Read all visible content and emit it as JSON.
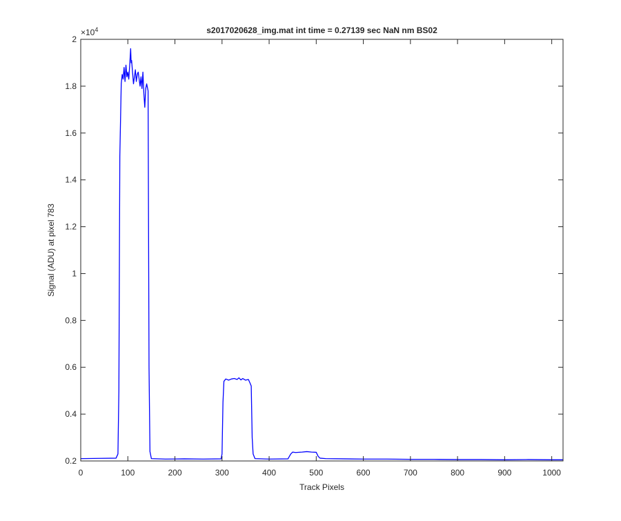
{
  "chart_data": {
    "type": "line",
    "title": "s2017020628_img.mat int time = 0.27139 sec  NaN nm BS02",
    "xlabel": "Track Pixels",
    "ylabel": "Signal (ADU) at pixel 783",
    "xlim": [
      0,
      1024
    ],
    "ylim": [
      2000,
      20000
    ],
    "y_exponent_label": "×10",
    "y_exponent_power": "4",
    "xticks": [
      0,
      100,
      200,
      300,
      400,
      500,
      600,
      700,
      800,
      900,
      1000
    ],
    "xtick_labels": [
      "0",
      "100",
      "200",
      "300",
      "400",
      "500",
      "600",
      "700",
      "800",
      "900",
      "1000"
    ],
    "yticks": [
      2000,
      4000,
      6000,
      8000,
      10000,
      12000,
      14000,
      16000,
      18000,
      20000
    ],
    "ytick_labels": [
      "0.2",
      "0.4",
      "0.6",
      "0.8",
      "1",
      "1.2",
      "1.4",
      "1.6",
      "1.8",
      "2"
    ],
    "grid": false,
    "series": [
      {
        "color": "#0000ff",
        "x": [
          0,
          40,
          75,
          79,
          81,
          83,
          86,
          88,
          90,
          92,
          94,
          96,
          98,
          100,
          102,
          104,
          106,
          107,
          108,
          110,
          112,
          114,
          116,
          118,
          120,
          122,
          124,
          126,
          128,
          130,
          132,
          134,
          136,
          138,
          140,
          142,
          143,
          145,
          147,
          150,
          180,
          220,
          260,
          298,
          300,
          302,
          304,
          308,
          314,
          320,
          326,
          332,
          336,
          340,
          344,
          350,
          356,
          360,
          362,
          364,
          366,
          370,
          400,
          440,
          446,
          450,
          456,
          470,
          480,
          490,
          500,
          504,
          508,
          520,
          560,
          600,
          650,
          700,
          750,
          800,
          850,
          900,
          950,
          1000,
          1024
        ],
        "y": [
          2100,
          2110,
          2120,
          2300,
          5000,
          15000,
          18100,
          18500,
          18300,
          18800,
          18200,
          18900,
          18400,
          18600,
          18300,
          18900,
          19600,
          19000,
          19100,
          18600,
          18100,
          18400,
          18700,
          18200,
          18500,
          18600,
          18300,
          18000,
          18400,
          17900,
          18600,
          17700,
          17100,
          17900,
          18100,
          17900,
          17800,
          6000,
          2400,
          2100,
          2080,
          2090,
          2080,
          2090,
          2300,
          4500,
          5400,
          5500,
          5450,
          5500,
          5520,
          5480,
          5550,
          5460,
          5520,
          5450,
          5480,
          5300,
          5200,
          3000,
          2300,
          2100,
          2080,
          2090,
          2300,
          2380,
          2360,
          2380,
          2400,
          2380,
          2370,
          2200,
          2120,
          2100,
          2090,
          2080,
          2080,
          2070,
          2070,
          2060,
          2060,
          2050,
          2060,
          2050,
          2050
        ]
      }
    ]
  }
}
